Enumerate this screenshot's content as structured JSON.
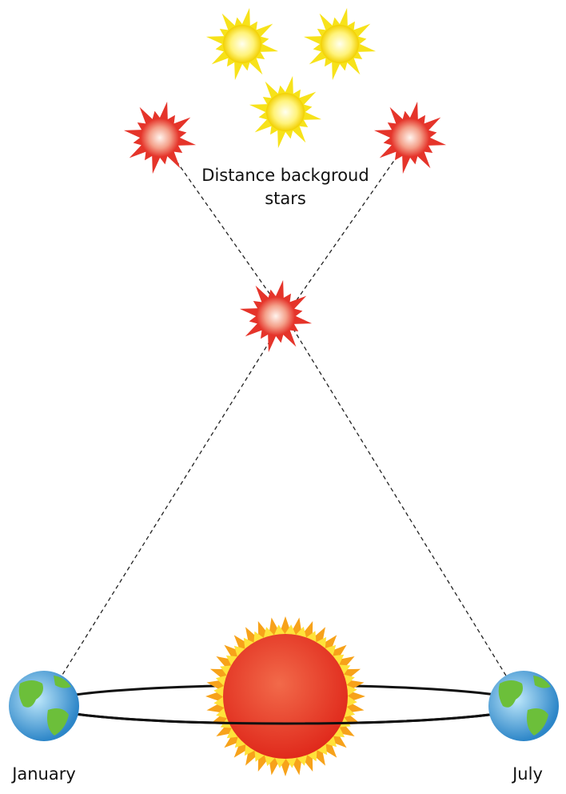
{
  "labels": {
    "background_stars": [
      "Distance backgroud",
      "stars"
    ],
    "january": "January",
    "july": "July"
  }
}
